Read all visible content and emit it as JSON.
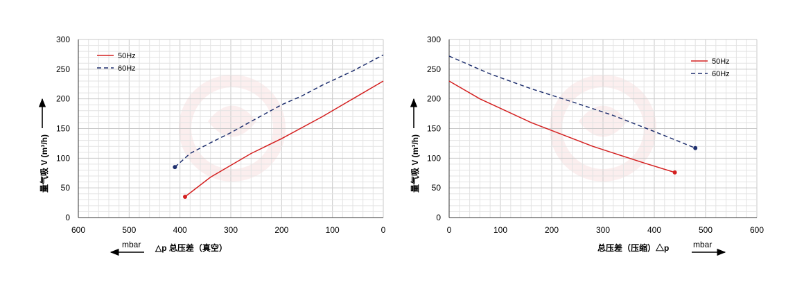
{
  "chart_data": [
    {
      "type": "line",
      "ylabel": "量气吸 V (m³/h)",
      "xlabel": "△p 总压差（真空）",
      "unit_label": "mbar",
      "xlim": [
        600,
        0
      ],
      "ylim": [
        0,
        300
      ],
      "x_ticks": [
        "600",
        "500",
        "400",
        "300",
        "200",
        "100",
        "0"
      ],
      "y_ticks": [
        "0",
        "50",
        "100",
        "150",
        "200",
        "250",
        "300"
      ],
      "grid": true,
      "legend": "top-left",
      "colors": {
        "50Hz": "#d42020",
        "60Hz": "#1e2f6e"
      },
      "series": [
        {
          "name": "50Hz",
          "style": "solid",
          "x": [
            390,
            340,
            300,
            260,
            200,
            120,
            60,
            0
          ],
          "y": [
            35,
            68,
            88,
            108,
            133,
            170,
            200,
            230
          ]
        },
        {
          "name": "60Hz",
          "style": "dashed",
          "x": [
            410,
            380,
            340,
            300,
            260,
            200,
            160,
            120,
            60,
            0
          ],
          "y": [
            85,
            108,
            126,
            143,
            162,
            190,
            205,
            223,
            247,
            274
          ]
        }
      ]
    },
    {
      "type": "line",
      "ylabel": "量气吸 V (m³/h)",
      "xlabel": "总压差（压缩）△p",
      "unit_label": "mbar",
      "xlim": [
        0,
        600
      ],
      "ylim": [
        0,
        300
      ],
      "x_ticks": [
        "0",
        "100",
        "200",
        "300",
        "400",
        "500",
        "600"
      ],
      "y_ticks": [
        "0",
        "50",
        "100",
        "150",
        "200",
        "250",
        "300"
      ],
      "grid": true,
      "legend": "top-right",
      "colors": {
        "50Hz": "#d42020",
        "60Hz": "#1e2f6e"
      },
      "series": [
        {
          "name": "50Hz",
          "style": "solid",
          "x": [
            0,
            60,
            160,
            280,
            380,
            440
          ],
          "y": [
            230,
            200,
            160,
            120,
            92,
            76
          ]
        },
        {
          "name": "60Hz",
          "style": "dashed",
          "x": [
            0,
            80,
            160,
            240,
            320,
            400,
            480
          ],
          "y": [
            272,
            242,
            217,
            195,
            172,
            145,
            117
          ]
        }
      ]
    }
  ]
}
